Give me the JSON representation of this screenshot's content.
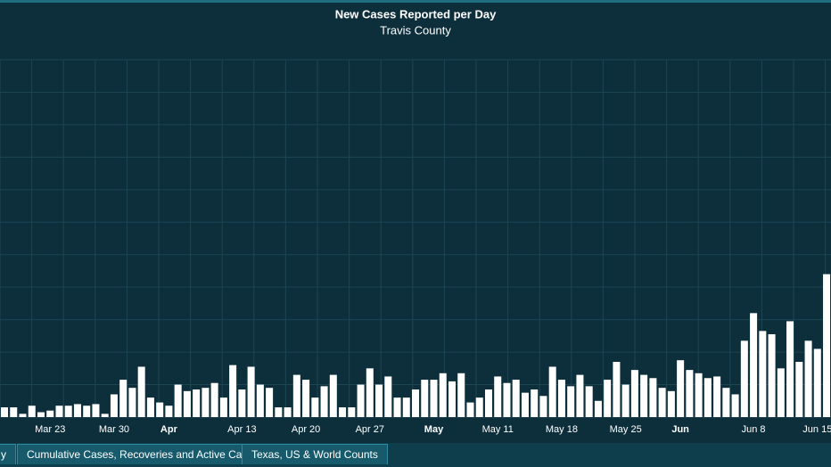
{
  "chart_data": {
    "type": "bar",
    "title": "New Cases Reported per Day",
    "subtitle": "Travis County",
    "categories": [
      null,
      null,
      null,
      null,
      null,
      "Mar 23",
      null,
      null,
      null,
      null,
      null,
      null,
      "Mar 30",
      null,
      null,
      null,
      null,
      null,
      "Apr",
      null,
      null,
      null,
      null,
      null,
      null,
      null,
      "Apr 13",
      null,
      null,
      null,
      null,
      null,
      null,
      "Apr 20",
      null,
      null,
      null,
      null,
      null,
      null,
      "Apr 27",
      null,
      null,
      null,
      null,
      null,
      null,
      "May",
      null,
      null,
      null,
      null,
      null,
      null,
      "May 11",
      null,
      null,
      null,
      null,
      null,
      null,
      "May 18",
      null,
      null,
      null,
      null,
      null,
      null,
      "May 25",
      null,
      null,
      null,
      null,
      null,
      "Jun",
      null,
      null,
      null,
      null,
      null,
      null,
      null,
      "Jun 8",
      null,
      null,
      null,
      null,
      null,
      null,
      "Jun 15",
      null
    ],
    "values": [
      6,
      6,
      2,
      7,
      3,
      4,
      7,
      7,
      8,
      7,
      8,
      2,
      14,
      23,
      18,
      31,
      12,
      9,
      7,
      20,
      16,
      17,
      18,
      21,
      12,
      32,
      17,
      31,
      20,
      18,
      6,
      6,
      26,
      23,
      12,
      19,
      26,
      6,
      6,
      20,
      30,
      20,
      25,
      12,
      12,
      17,
      23,
      23,
      27,
      22,
      27,
      9,
      12,
      17,
      25,
      21,
      23,
      15,
      17,
      13,
      31,
      23,
      19,
      26,
      19,
      10,
      23,
      34,
      20,
      29,
      26,
      24,
      18,
      16,
      35,
      29,
      27,
      24,
      25,
      18,
      14,
      47,
      64,
      53,
      51,
      30,
      59,
      34,
      47,
      42,
      88
    ],
    "color": "#ffffff",
    "ylim": [
      0,
      220
    ],
    "grid": true
  },
  "tabs": [
    "y",
    "Cumulative Cases, Recoveries and Active Cases",
    "Texas, US & World Counts"
  ]
}
